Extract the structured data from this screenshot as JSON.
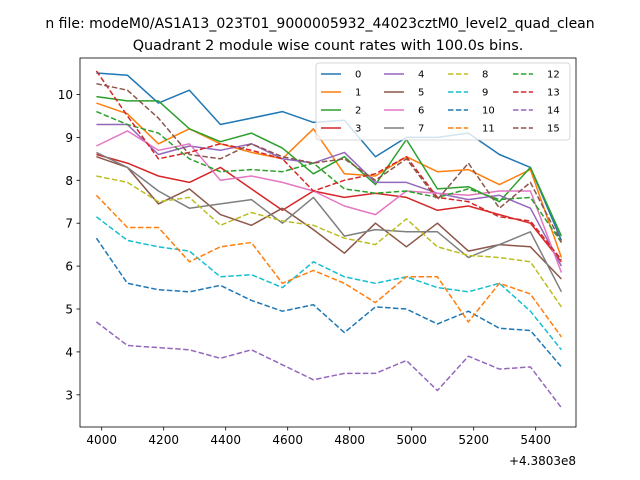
{
  "chart_data": {
    "type": "line",
    "suptitle": "n file: modeM0/AS1A13_023T01_9000005932_44023cztM0_level2_quad_clean",
    "title": "Quadrant 2 module wise count rates with 100.0s bins.",
    "xlabel": "",
    "ylabel": "",
    "x_offset_label": "+4.3803e8",
    "xlim": [
      3930,
      5530
    ],
    "ylim": [
      2.25,
      10.85
    ],
    "xticks": [
      4000,
      4200,
      4400,
      4600,
      4800,
      5000,
      5200,
      5400
    ],
    "xtick_labels": [
      "4000",
      "4200",
      "4400",
      "4600",
      "4800",
      "5000",
      "5200",
      "5400"
    ],
    "yticks": [
      3,
      4,
      5,
      6,
      7,
      8,
      9,
      10
    ],
    "ytick_labels": [
      "3",
      "4",
      "5",
      "6",
      "7",
      "8",
      "9",
      "10"
    ],
    "legend_position": "upper-right",
    "legend_columns": 4,
    "x": [
      3983,
      4083,
      4183,
      4283,
      4383,
      4483,
      4583,
      4683,
      4783,
      4883,
      4983,
      5083,
      5183,
      5283,
      5383,
      5483
    ],
    "series": [
      {
        "name": "0",
        "color": "#1f77b4",
        "dash": "solid",
        "values": [
          10.5,
          10.45,
          9.8,
          10.1,
          9.3,
          9.45,
          9.6,
          9.35,
          9.4,
          8.55,
          9.0,
          9.0,
          9.1,
          8.6,
          8.3,
          6.6
        ]
      },
      {
        "name": "1",
        "color": "#ff7f0e",
        "dash": "solid",
        "values": [
          9.8,
          9.55,
          8.85,
          9.2,
          8.85,
          8.65,
          8.5,
          9.2,
          8.15,
          8.1,
          8.55,
          8.2,
          8.25,
          7.9,
          8.25,
          6.2
        ]
      },
      {
        "name": "2",
        "color": "#2ca02c",
        "dash": "solid",
        "values": [
          9.95,
          9.85,
          9.85,
          9.2,
          8.9,
          9.1,
          8.75,
          8.15,
          8.55,
          7.9,
          8.95,
          7.8,
          7.85,
          7.5,
          8.3,
          6.7
        ]
      },
      {
        "name": "3",
        "color": "#d62728",
        "dash": "solid",
        "values": [
          8.6,
          8.4,
          8.1,
          7.95,
          8.3,
          7.8,
          7.3,
          7.75,
          7.6,
          7.7,
          7.6,
          7.3,
          7.4,
          7.2,
          7.0,
          6.1
        ]
      },
      {
        "name": "4",
        "color": "#9467bd",
        "dash": "solid",
        "values": [
          9.3,
          9.3,
          8.6,
          8.8,
          8.7,
          8.85,
          8.5,
          8.4,
          8.65,
          7.95,
          7.95,
          7.7,
          7.55,
          7.65,
          7.35,
          6.0
        ]
      },
      {
        "name": "5",
        "color": "#8c564b",
        "dash": "solid",
        "values": [
          8.55,
          8.3,
          7.45,
          7.8,
          7.2,
          6.95,
          7.35,
          6.85,
          6.3,
          7.0,
          6.45,
          7.0,
          6.35,
          6.5,
          6.45,
          5.7
        ]
      },
      {
        "name": "6",
        "color": "#e377c2",
        "dash": "solid",
        "values": [
          8.8,
          9.15,
          8.7,
          8.85,
          8.0,
          8.1,
          7.95,
          7.75,
          7.4,
          7.2,
          7.75,
          7.7,
          7.65,
          7.75,
          7.75,
          5.85
        ]
      },
      {
        "name": "7",
        "color": "#7f7f7f",
        "dash": "solid",
        "values": [
          8.65,
          8.3,
          7.75,
          7.35,
          7.45,
          7.55,
          7.0,
          7.6,
          6.7,
          6.85,
          6.8,
          6.8,
          6.2,
          6.5,
          6.8,
          5.4
        ]
      },
      {
        "name": "8",
        "color": "#bcbd22",
        "dash": "dashed",
        "values": [
          8.1,
          7.95,
          7.5,
          7.6,
          6.95,
          7.25,
          7.05,
          6.95,
          6.65,
          6.5,
          7.1,
          6.45,
          6.25,
          6.2,
          6.1,
          5.05
        ]
      },
      {
        "name": "9",
        "color": "#17becf",
        "dash": "dashed",
        "values": [
          7.15,
          6.6,
          6.45,
          6.35,
          5.75,
          5.8,
          5.5,
          6.1,
          5.75,
          5.6,
          5.75,
          5.5,
          5.4,
          5.6,
          4.95,
          4.05
        ]
      },
      {
        "name": "10",
        "color": "#1f77b4",
        "dash": "dashed",
        "values": [
          6.65,
          5.6,
          5.45,
          5.4,
          5.55,
          5.2,
          4.95,
          5.1,
          4.45,
          5.05,
          5.0,
          4.65,
          4.95,
          4.55,
          4.5,
          3.65
        ]
      },
      {
        "name": "11",
        "color": "#ff7f0e",
        "dash": "dashed",
        "values": [
          7.65,
          6.9,
          6.9,
          6.1,
          6.45,
          6.55,
          5.6,
          5.9,
          5.6,
          5.15,
          5.75,
          5.75,
          4.7,
          5.6,
          5.35,
          4.35
        ]
      },
      {
        "name": "12",
        "color": "#2ca02c",
        "dash": "dashed",
        "values": [
          9.6,
          9.3,
          9.1,
          8.5,
          8.2,
          8.25,
          8.2,
          8.4,
          7.8,
          7.7,
          7.75,
          7.6,
          7.8,
          7.55,
          7.6,
          6.55
        ]
      },
      {
        "name": "13",
        "color": "#d62728",
        "dash": "dashed",
        "values": [
          10.55,
          9.5,
          8.5,
          8.65,
          8.85,
          8.7,
          8.5,
          7.75,
          8.0,
          8.15,
          8.55,
          7.6,
          7.5,
          7.15,
          7.05,
          6.15
        ]
      },
      {
        "name": "14",
        "color": "#9467bd",
        "dash": "dashed",
        "values": [
          4.7,
          4.15,
          4.1,
          4.05,
          3.85,
          4.05,
          3.7,
          3.35,
          3.5,
          3.5,
          3.8,
          3.1,
          3.9,
          3.6,
          3.65,
          2.7
        ]
      },
      {
        "name": "15",
        "color": "#8c564b",
        "dash": "dashed",
        "values": [
          10.25,
          10.1,
          9.45,
          8.6,
          8.5,
          8.85,
          8.55,
          8.4,
          8.5,
          8.0,
          8.5,
          7.55,
          8.4,
          7.35,
          7.95,
          6.55
        ]
      }
    ]
  }
}
